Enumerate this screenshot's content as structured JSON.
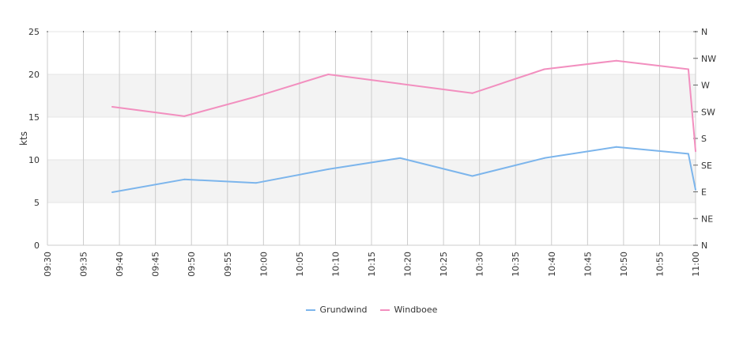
{
  "chart_data": {
    "type": "line",
    "ylabel": "kts",
    "ylim": [
      0,
      25
    ],
    "yticks": [
      0,
      5,
      10,
      15,
      20,
      25
    ],
    "xticks": [
      "09:30",
      "09:35",
      "09:40",
      "09:45",
      "09:50",
      "09:55",
      "10:00",
      "10:05",
      "10:10",
      "10:15",
      "10:20",
      "10:25",
      "10:30",
      "10:35",
      "10:40",
      "10:45",
      "10:50",
      "10:55",
      "11:00"
    ],
    "xrange": [
      "09:30",
      "11:00"
    ],
    "direction_axis": {
      "labels": [
        "N",
        "NW",
        "W",
        "SW",
        "S",
        "SE",
        "E",
        "NE",
        "N"
      ]
    },
    "bands": [
      [
        5,
        10
      ],
      [
        15,
        20
      ]
    ],
    "grid": true,
    "legend_position": "bottom",
    "series": [
      {
        "name": "Grundwind",
        "color": "#7cb5ec",
        "points": [
          {
            "x": "09:39",
            "y": 6.2
          },
          {
            "x": "09:49",
            "y": 7.7
          },
          {
            "x": "09:59",
            "y": 7.3
          },
          {
            "x": "10:09",
            "y": 8.9
          },
          {
            "x": "10:19",
            "y": 10.2
          },
          {
            "x": "10:29",
            "y": 8.1
          },
          {
            "x": "10:39",
            "y": 10.2
          },
          {
            "x": "10:49",
            "y": 11.5
          },
          {
            "x": "10:59",
            "y": 10.7
          },
          {
            "x": "11:00",
            "y": 6.5
          }
        ]
      },
      {
        "name": "Windboee",
        "color": "#f28fbf",
        "points": [
          {
            "x": "09:39",
            "y": 16.2
          },
          {
            "x": "09:49",
            "y": 15.1
          },
          {
            "x": "09:59",
            "y": 17.4
          },
          {
            "x": "10:09",
            "y": 20.0
          },
          {
            "x": "10:19",
            "y": 18.9
          },
          {
            "x": "10:29",
            "y": 17.8
          },
          {
            "x": "10:39",
            "y": 20.6
          },
          {
            "x": "10:49",
            "y": 21.6
          },
          {
            "x": "10:59",
            "y": 20.6
          },
          {
            "x": "11:00",
            "y": 11.0
          }
        ]
      }
    ]
  }
}
